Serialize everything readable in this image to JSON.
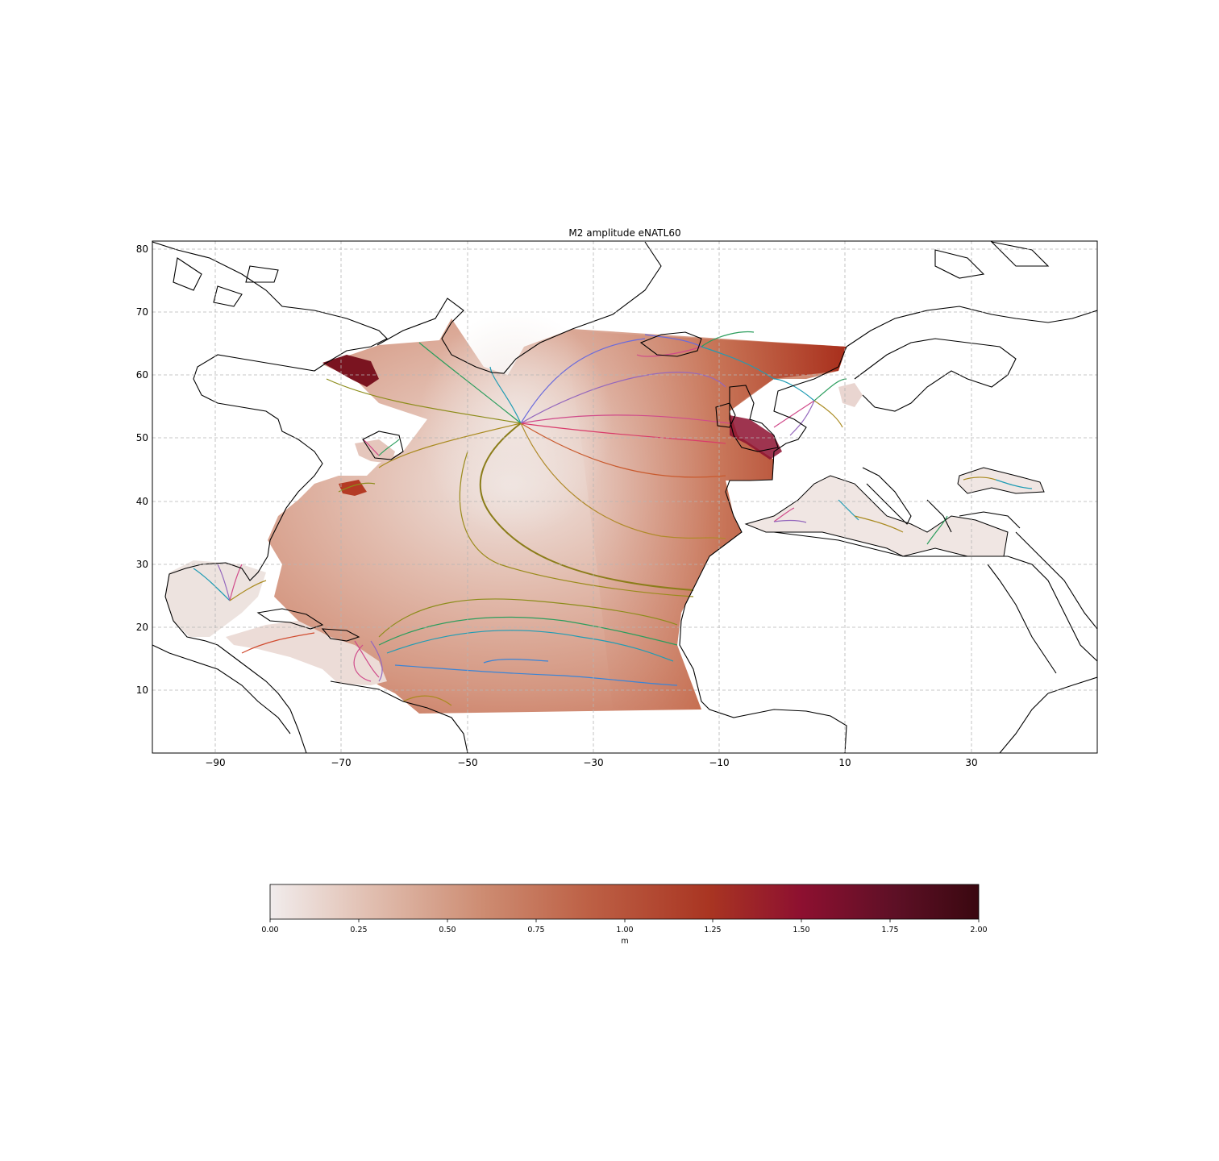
{
  "title": "M2 amplitude eNATL60",
  "map": {
    "lon_range": [
      -100,
      50
    ],
    "lat_range": [
      0,
      81.5
    ],
    "x_ticks": [
      -90,
      -70,
      -50,
      -30,
      -10,
      10,
      30
    ],
    "x_tick_labels": [
      "−90",
      "−70",
      "−50",
      "−30",
      "−10",
      "10",
      "30"
    ],
    "y_ticks": [
      10,
      20,
      30,
      40,
      50,
      60,
      70,
      80
    ],
    "y_tick_labels": [
      "10",
      "20",
      "30",
      "40",
      "50",
      "60",
      "70",
      "80"
    ],
    "grid": "dashed",
    "contour_colors": [
      "#1f77b4",
      "#17becf",
      "#2ca02c",
      "#8c8c1a",
      "#b8860b",
      "#d62728",
      "#e377c2",
      "#9467bd"
    ]
  },
  "colorbar": {
    "label": "m",
    "range": [
      0,
      2
    ],
    "ticks": [
      "0.00",
      "0.25",
      "0.50",
      "0.75",
      "1.00",
      "1.25",
      "1.50",
      "1.75",
      "2.00"
    ],
    "colormap": [
      "#f1ecec",
      "#e1bfb1",
      "#cd8c72",
      "#bd6045",
      "#a93522",
      "#8d1030",
      "#5e1026",
      "#3a0810"
    ]
  }
}
